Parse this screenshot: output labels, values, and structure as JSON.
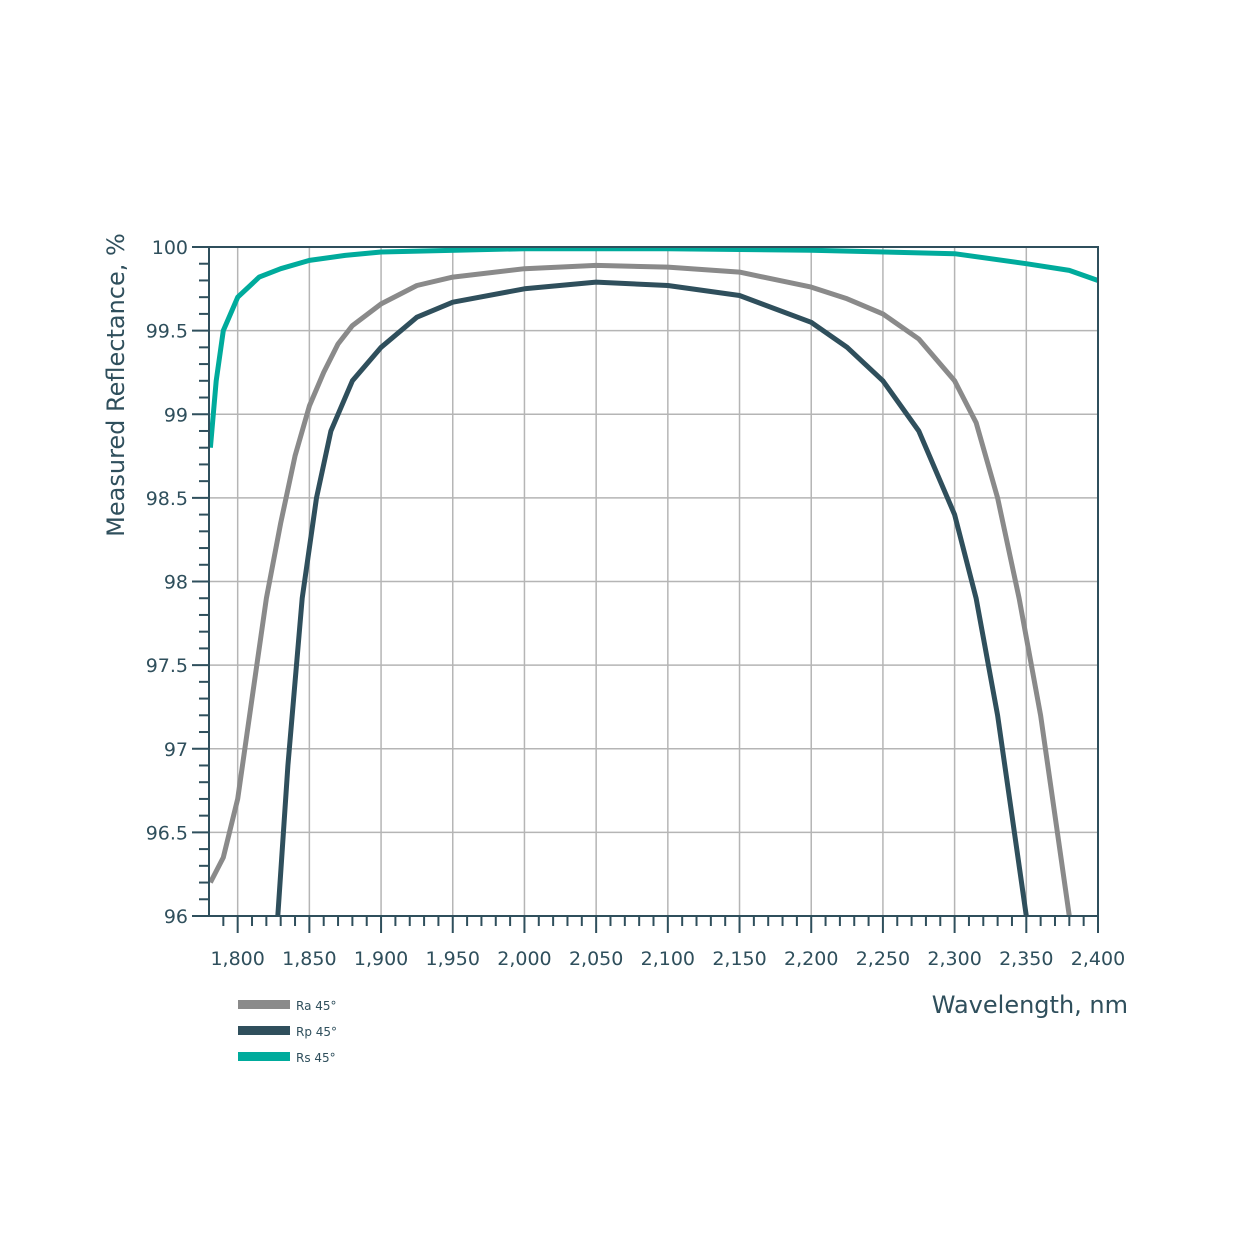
{
  "chart_data": {
    "type": "line",
    "title": "",
    "xlabel": "Wavelength, nm",
    "ylabel": "Measured Reflectance, %",
    "xlim": [
      1780,
      2400
    ],
    "ylim": [
      96,
      100
    ],
    "grid": true,
    "x_ticks": [
      1800,
      1850,
      1900,
      1950,
      2000,
      2050,
      2100,
      2150,
      2200,
      2250,
      2300,
      2350,
      2400
    ],
    "x_tick_labels": [
      "1,800",
      "1,850",
      "1,900",
      "1,950",
      "2,000",
      "2,050",
      "2,100",
      "2,150",
      "2,200",
      "2,250",
      "2,300",
      "2,350",
      "2,400"
    ],
    "y_ticks": [
      96,
      96.5,
      97,
      97.5,
      98,
      98.5,
      99,
      99.5,
      100
    ],
    "y_tick_labels": [
      "96",
      "96.5",
      "97",
      "97.5",
      "98",
      "98.5",
      "99",
      "99.5",
      "100"
    ],
    "legend_position": "bottom-left",
    "series": [
      {
        "name": "Ra 45°",
        "color": "#8a8a8a",
        "x": [
          1781,
          1790,
          1800,
          1810,
          1820,
          1830,
          1840,
          1850,
          1860,
          1870,
          1880,
          1900,
          1925,
          1950,
          2000,
          2050,
          2100,
          2150,
          2200,
          2225,
          2250,
          2275,
          2300,
          2315,
          2330,
          2345,
          2360,
          2370,
          2380
        ],
        "values": [
          96.2,
          96.35,
          96.7,
          97.3,
          97.9,
          98.35,
          98.75,
          99.05,
          99.25,
          99.42,
          99.53,
          99.66,
          99.77,
          99.82,
          99.87,
          99.89,
          99.88,
          99.85,
          99.76,
          99.69,
          99.6,
          99.45,
          99.2,
          98.95,
          98.5,
          97.9,
          97.2,
          96.6,
          96.0
        ]
      },
      {
        "name": "Rp 45°",
        "color": "#2f4f5c",
        "x": [
          1828,
          1835,
          1845,
          1855,
          1865,
          1880,
          1900,
          1925,
          1950,
          2000,
          2050,
          2100,
          2150,
          2200,
          2225,
          2250,
          2275,
          2300,
          2315,
          2330,
          2340,
          2350
        ],
        "values": [
          96.0,
          96.9,
          97.9,
          98.5,
          98.9,
          99.2,
          99.4,
          99.58,
          99.67,
          99.75,
          99.79,
          99.77,
          99.71,
          99.55,
          99.4,
          99.2,
          98.9,
          98.4,
          97.9,
          97.2,
          96.6,
          96.0
        ]
      },
      {
        "name": "Rs 45°",
        "color": "#00ab9c",
        "x": [
          1781,
          1785,
          1790,
          1800,
          1815,
          1830,
          1850,
          1875,
          1900,
          2000,
          2100,
          2200,
          2300,
          2350,
          2380,
          2400
        ],
        "values": [
          98.8,
          99.2,
          99.5,
          99.7,
          99.82,
          99.87,
          99.92,
          99.95,
          99.97,
          99.99,
          99.99,
          99.98,
          99.96,
          99.9,
          99.86,
          99.8
        ]
      }
    ]
  },
  "legend": {
    "items": [
      {
        "label": "Ra 45°",
        "color": "#8a8a8a"
      },
      {
        "label": "Rp 45°",
        "color": "#2f4f5c"
      },
      {
        "label": "Rs 45°",
        "color": "#00ab9c"
      }
    ]
  },
  "colors": {
    "axis": "#2f4f5c",
    "grid": "#b5b5b5"
  }
}
